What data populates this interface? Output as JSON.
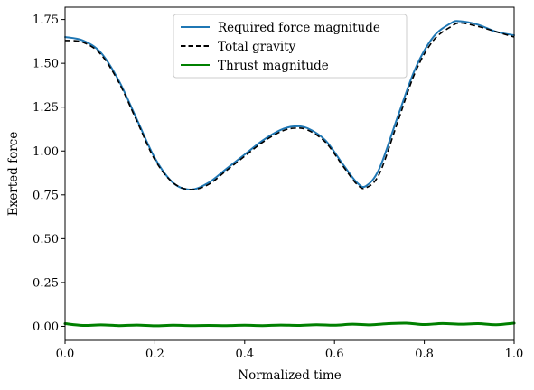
{
  "chart_data": {
    "type": "line",
    "title": "",
    "xlabel": "Normalized time",
    "ylabel": "Exerted force",
    "xlim": [
      0,
      1
    ],
    "ylim": [
      -0.08,
      1.82
    ],
    "xticks": [
      0.0,
      0.2,
      0.4,
      0.6,
      0.8,
      1.0
    ],
    "xtick_labels": [
      "0.0",
      "0.2",
      "0.4",
      "0.6",
      "0.8",
      "1.0"
    ],
    "yticks": [
      0.0,
      0.25,
      0.5,
      0.75,
      1.0,
      1.25,
      1.5,
      1.75
    ],
    "ytick_labels": [
      "0.00",
      "0.25",
      "0.50",
      "0.75",
      "1.00",
      "1.25",
      "1.50",
      "1.75"
    ],
    "grid": false,
    "legend_position": "top-center",
    "series": [
      {
        "name": "Required force magnitude",
        "color": "#1f77b4",
        "style": "solid",
        "x": [
          0.0,
          0.04,
          0.08,
          0.12,
          0.16,
          0.2,
          0.24,
          0.28,
          0.32,
          0.36,
          0.4,
          0.44,
          0.48,
          0.51,
          0.54,
          0.58,
          0.62,
          0.65,
          0.67,
          0.7,
          0.74,
          0.78,
          0.82,
          0.86,
          0.88,
          0.92,
          0.96,
          1.0
        ],
        "y": [
          1.65,
          1.63,
          1.56,
          1.4,
          1.18,
          0.96,
          0.82,
          0.78,
          0.82,
          0.9,
          0.98,
          1.06,
          1.12,
          1.14,
          1.13,
          1.06,
          0.92,
          0.82,
          0.8,
          0.9,
          1.19,
          1.47,
          1.65,
          1.73,
          1.74,
          1.72,
          1.68,
          1.66
        ]
      },
      {
        "name": "Total gravity",
        "color": "#000000",
        "style": "dashed",
        "x": [
          0.0,
          0.04,
          0.08,
          0.12,
          0.16,
          0.2,
          0.24,
          0.28,
          0.32,
          0.36,
          0.4,
          0.44,
          0.48,
          0.51,
          0.54,
          0.58,
          0.62,
          0.65,
          0.67,
          0.7,
          0.74,
          0.78,
          0.82,
          0.86,
          0.88,
          0.92,
          0.96,
          1.0
        ],
        "y": [
          1.63,
          1.62,
          1.55,
          1.39,
          1.17,
          0.95,
          0.82,
          0.78,
          0.81,
          0.89,
          0.97,
          1.05,
          1.11,
          1.13,
          1.12,
          1.05,
          0.91,
          0.81,
          0.79,
          0.87,
          1.16,
          1.45,
          1.63,
          1.71,
          1.73,
          1.71,
          1.68,
          1.65
        ]
      },
      {
        "name": "Thrust magnitude",
        "color": "#008000",
        "style": "solid",
        "x": [
          0.0,
          0.04,
          0.08,
          0.12,
          0.16,
          0.2,
          0.24,
          0.28,
          0.32,
          0.36,
          0.4,
          0.44,
          0.48,
          0.52,
          0.56,
          0.6,
          0.64,
          0.68,
          0.72,
          0.76,
          0.8,
          0.84,
          0.88,
          0.92,
          0.96,
          1.0
        ],
        "y": [
          0.015,
          0.005,
          0.008,
          0.004,
          0.007,
          0.003,
          0.006,
          0.004,
          0.005,
          0.004,
          0.006,
          0.004,
          0.007,
          0.005,
          0.009,
          0.006,
          0.012,
          0.008,
          0.015,
          0.018,
          0.01,
          0.016,
          0.012,
          0.015,
          0.009,
          0.018
        ]
      }
    ]
  }
}
